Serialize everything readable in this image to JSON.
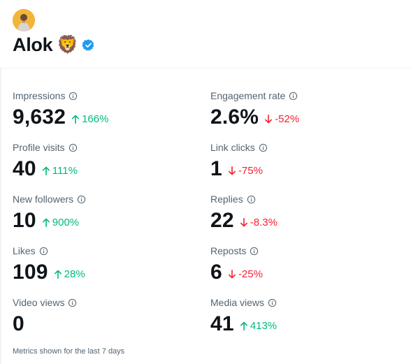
{
  "profile": {
    "name": "Alok",
    "emoji": "🦁"
  },
  "metrics": [
    {
      "label": "Impressions",
      "value": "9,632",
      "change": "166%",
      "direction": "up"
    },
    {
      "label": "Engagement rate",
      "value": "2.6%",
      "change": "-52%",
      "direction": "down"
    },
    {
      "label": "Profile visits",
      "value": "40",
      "change": "111%",
      "direction": "up"
    },
    {
      "label": "Link clicks",
      "value": "1",
      "change": "-75%",
      "direction": "down"
    },
    {
      "label": "New followers",
      "value": "10",
      "change": "900%",
      "direction": "up"
    },
    {
      "label": "Replies",
      "value": "22",
      "change": "-8.3%",
      "direction": "down"
    },
    {
      "label": "Likes",
      "value": "109",
      "change": "28%",
      "direction": "up"
    },
    {
      "label": "Reposts",
      "value": "6",
      "change": "-25%",
      "direction": "down"
    },
    {
      "label": "Video views",
      "value": "0",
      "change": "",
      "direction": "none"
    },
    {
      "label": "Media views",
      "value": "41",
      "change": "413%",
      "direction": "up"
    }
  ],
  "footnote": "Metrics shown for the last 7 days",
  "colors": {
    "up": "#00ba7c",
    "down": "#f4212e",
    "verified": "#1d9bf0",
    "text": "#0f1419",
    "muted": "#536471"
  },
  "icons": {
    "info": "info-circle-icon",
    "up": "arrow-up-icon",
    "down": "arrow-down-icon",
    "verified": "verified-badge-icon"
  }
}
